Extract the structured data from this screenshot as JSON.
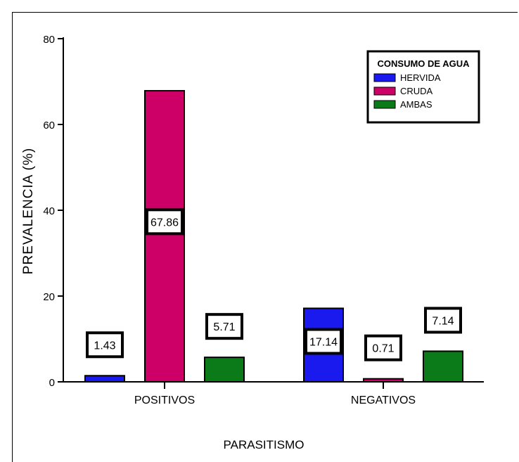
{
  "chart_data": {
    "type": "bar",
    "title": "",
    "xlabel": "PARASITISMO",
    "ylabel": "PREVALENCIA (%)",
    "ylim": [
      0,
      80
    ],
    "yticks": [
      "0",
      "20",
      "40",
      "60",
      "80"
    ],
    "categories": [
      "POSITIVOS",
      "NEGATIVOS"
    ],
    "series": [
      {
        "name": "HERVIDA",
        "color": "#1a1aee",
        "values": [
          1.43,
          17.14
        ],
        "labels": [
          "1.43",
          "17.14"
        ]
      },
      {
        "name": "CRUDA",
        "color": "#cc0066",
        "values": [
          67.86,
          0.71
        ],
        "labels": [
          "67.86",
          "0.71"
        ]
      },
      {
        "name": "AMBAS",
        "color": "#0b7a18",
        "values": [
          5.71,
          7.14
        ],
        "labels": [
          "5.71",
          "7.14"
        ]
      }
    ],
    "legend": {
      "title": "CONSUMO DE AGUA",
      "placement": "top-right"
    }
  }
}
